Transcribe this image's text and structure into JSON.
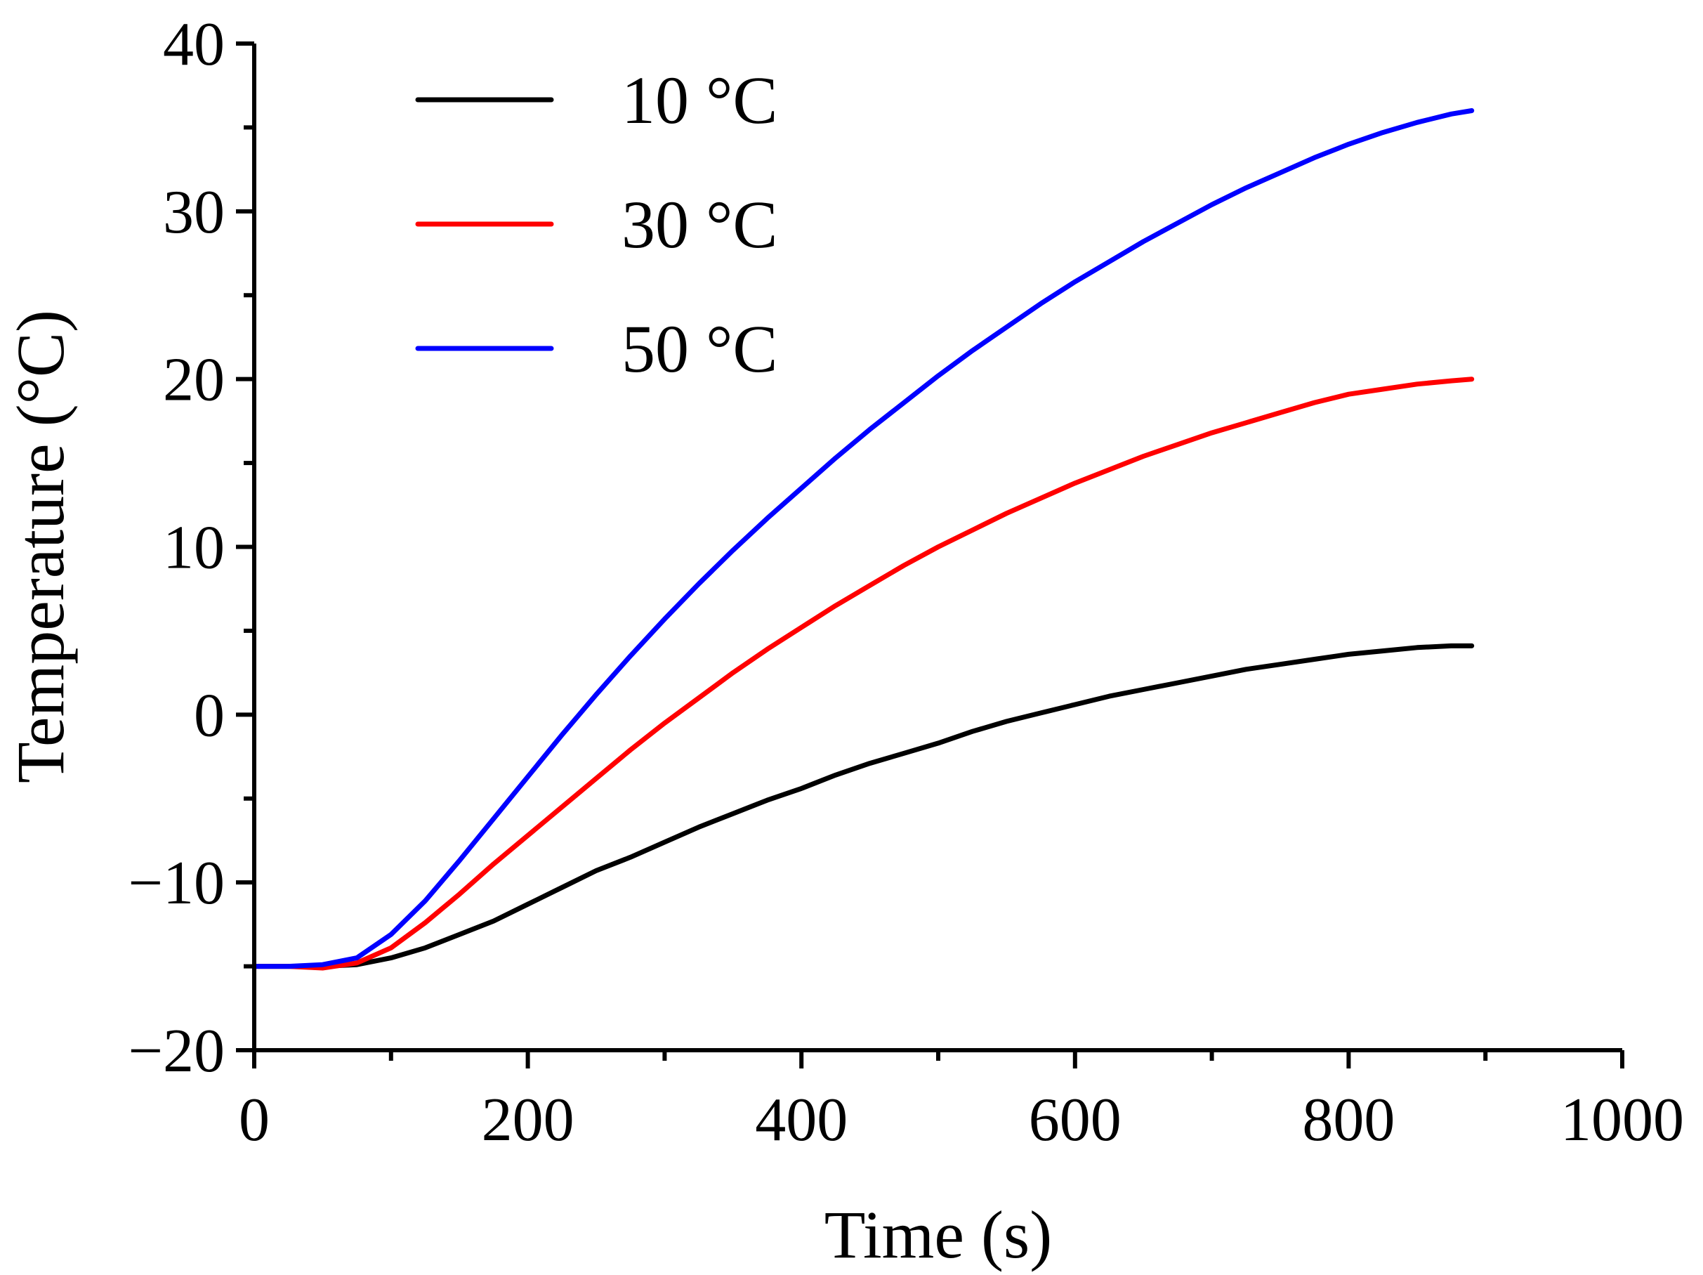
{
  "chart_data": {
    "type": "line",
    "title": "",
    "xlabel": "Time (s)",
    "ylabel": "Temperature (°C)",
    "xlim": [
      0,
      1000
    ],
    "ylim": [
      -20,
      40
    ],
    "xticks": [
      0,
      200,
      400,
      600,
      800,
      1000
    ],
    "yticks": [
      -20,
      -10,
      0,
      10,
      20,
      30,
      40
    ],
    "xtick_labels": [
      "0",
      "200",
      "400",
      "600",
      "800",
      "1000"
    ],
    "ytick_labels": [
      "−20",
      "−10",
      "0",
      "10",
      "20",
      "30",
      "40"
    ],
    "grid": false,
    "legend_position": "top-left",
    "series": [
      {
        "name": "10 °C",
        "color": "#000000",
        "x": [
          0,
          25,
          50,
          75,
          100,
          125,
          150,
          175,
          200,
          225,
          250,
          275,
          300,
          325,
          350,
          375,
          400,
          425,
          450,
          475,
          500,
          525,
          550,
          575,
          600,
          625,
          650,
          675,
          700,
          725,
          750,
          775,
          800,
          825,
          850,
          875,
          890
        ],
        "values": [
          -15,
          -15,
          -15,
          -14.9,
          -14.5,
          -13.9,
          -13.1,
          -12.3,
          -11.3,
          -10.3,
          -9.3,
          -8.5,
          -7.6,
          -6.7,
          -5.9,
          -5.1,
          -4.4,
          -3.6,
          -2.9,
          -2.3,
          -1.7,
          -1.0,
          -0.4,
          0.1,
          0.6,
          1.1,
          1.5,
          1.9,
          2.3,
          2.7,
          3.0,
          3.3,
          3.6,
          3.8,
          4.0,
          4.1,
          4.1
        ]
      },
      {
        "name": "30 °C",
        "color": "#ff0000",
        "x": [
          0,
          25,
          50,
          75,
          100,
          125,
          150,
          175,
          200,
          225,
          250,
          275,
          300,
          325,
          350,
          375,
          400,
          425,
          450,
          475,
          500,
          525,
          550,
          575,
          600,
          625,
          650,
          675,
          700,
          725,
          750,
          775,
          800,
          825,
          850,
          875,
          890
        ],
        "values": [
          -15,
          -15,
          -15.1,
          -14.8,
          -13.9,
          -12.4,
          -10.7,
          -8.9,
          -7.2,
          -5.5,
          -3.8,
          -2.1,
          -0.5,
          1.0,
          2.5,
          3.9,
          5.2,
          6.5,
          7.7,
          8.9,
          10.0,
          11.0,
          12.0,
          12.9,
          13.8,
          14.6,
          15.4,
          16.1,
          16.8,
          17.4,
          18.0,
          18.6,
          19.1,
          19.4,
          19.7,
          19.9,
          20.0
        ]
      },
      {
        "name": "50 °C",
        "color": "#0000ff",
        "x": [
          0,
          25,
          50,
          75,
          100,
          125,
          150,
          175,
          200,
          225,
          250,
          275,
          300,
          325,
          350,
          375,
          400,
          425,
          450,
          475,
          500,
          525,
          550,
          575,
          600,
          625,
          650,
          675,
          700,
          725,
          750,
          775,
          800,
          825,
          850,
          875,
          890
        ],
        "values": [
          -15,
          -15,
          -14.9,
          -14.5,
          -13.1,
          -11.1,
          -8.7,
          -6.2,
          -3.7,
          -1.2,
          1.2,
          3.5,
          5.7,
          7.8,
          9.8,
          11.7,
          13.5,
          15.3,
          17.0,
          18.6,
          20.2,
          21.7,
          23.1,
          24.5,
          25.8,
          27.0,
          28.2,
          29.3,
          30.4,
          31.4,
          32.3,
          33.2,
          34.0,
          34.7,
          35.3,
          35.8,
          36.0
        ]
      }
    ]
  }
}
